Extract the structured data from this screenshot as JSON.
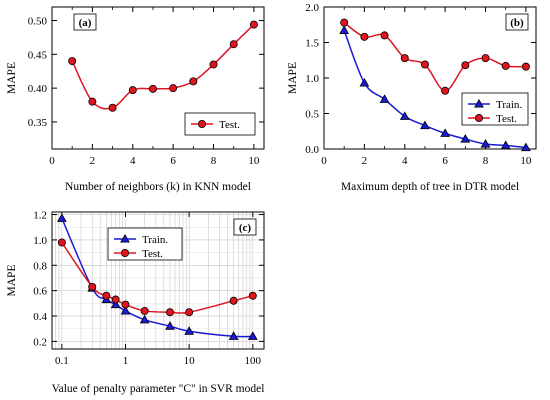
{
  "chart_data": [
    {
      "type": "line",
      "panel_label": "(a)",
      "xlabel": "Number of neighbors (k) in KNN model",
      "ylabel": "MAPE",
      "xlim": [
        0,
        10.5
      ],
      "ylim": [
        0.31,
        0.52
      ],
      "xticks": [
        0,
        2,
        4,
        6,
        8,
        10
      ],
      "yticks": [
        0.35,
        0.4,
        0.45,
        0.5
      ],
      "ytick_labels": [
        "0.35",
        "0.40",
        "0.45",
        "0.50"
      ],
      "xscale": "linear",
      "grid": false,
      "legend_position": "bottom-right",
      "series": [
        {
          "name": "Test.",
          "color": "#e0141e",
          "marker": "circle",
          "x": [
            1,
            2,
            3,
            4,
            5,
            6,
            7,
            8,
            9,
            10
          ],
          "y": [
            0.44,
            0.38,
            0.371,
            0.397,
            0.399,
            0.4,
            0.41,
            0.435,
            0.465,
            0.494
          ]
        }
      ]
    },
    {
      "type": "line",
      "panel_label": "(b)",
      "xlabel": "Maximum depth of tree in DTR model",
      "ylabel": "MAPE",
      "xlim": [
        0,
        10.5
      ],
      "ylim": [
        0,
        2.0
      ],
      "xticks": [
        0,
        2,
        4,
        6,
        8,
        10
      ],
      "yticks": [
        0.0,
        0.5,
        1.0,
        1.5,
        2.0
      ],
      "ytick_labels": [
        "0.0",
        "0.5",
        "1.0",
        "1.5",
        "2.0"
      ],
      "xscale": "linear",
      "grid": false,
      "legend_position": "bottom-right",
      "series": [
        {
          "name": "Train.",
          "color": "#1a1ad6",
          "marker": "triangle",
          "x": [
            1,
            2,
            3,
            4,
            5,
            6,
            7,
            8,
            9,
            10
          ],
          "y": [
            1.67,
            0.93,
            0.7,
            0.46,
            0.33,
            0.22,
            0.14,
            0.07,
            0.05,
            0.02
          ]
        },
        {
          "name": "Test.",
          "color": "#e0141e",
          "marker": "circle",
          "x": [
            1,
            2,
            3,
            4,
            5,
            6,
            7,
            8,
            9,
            10
          ],
          "y": [
            1.78,
            1.58,
            1.6,
            1.28,
            1.19,
            0.82,
            1.18,
            1.28,
            1.17,
            1.16
          ]
        }
      ]
    },
    {
      "type": "line",
      "panel_label": "(c)",
      "xlabel": "Value of penalty parameter \"C\" in SVR model",
      "ylabel": "MAPE",
      "xlim": [
        0.07,
        150
      ],
      "ylim": [
        0.14,
        1.22
      ],
      "xticks": [
        0.1,
        1,
        10,
        100
      ],
      "xtick_labels": [
        "0.1",
        "1",
        "10",
        "100"
      ],
      "yticks": [
        0.2,
        0.4,
        0.6,
        0.8,
        1.0,
        1.2
      ],
      "ytick_labels": [
        "0.2",
        "0.4",
        "0.6",
        "0.8",
        "1.0",
        "1.2"
      ],
      "xscale": "log",
      "grid": true,
      "legend_position": "top-left",
      "series": [
        {
          "name": "Train.",
          "color": "#1a1ad6",
          "marker": "triangle",
          "x": [
            0.1,
            0.3,
            0.5,
            0.7,
            1,
            2,
            5,
            10,
            50,
            100
          ],
          "y": [
            1.17,
            0.62,
            0.53,
            0.49,
            0.44,
            0.37,
            0.32,
            0.28,
            0.24,
            0.24
          ]
        },
        {
          "name": "Test.",
          "color": "#e0141e",
          "marker": "circle",
          "x": [
            0.1,
            0.3,
            0.5,
            0.7,
            1,
            2,
            5,
            10,
            50,
            100
          ],
          "y": [
            0.98,
            0.63,
            0.56,
            0.53,
            0.49,
            0.44,
            0.43,
            0.43,
            0.52,
            0.56
          ]
        }
      ]
    }
  ]
}
